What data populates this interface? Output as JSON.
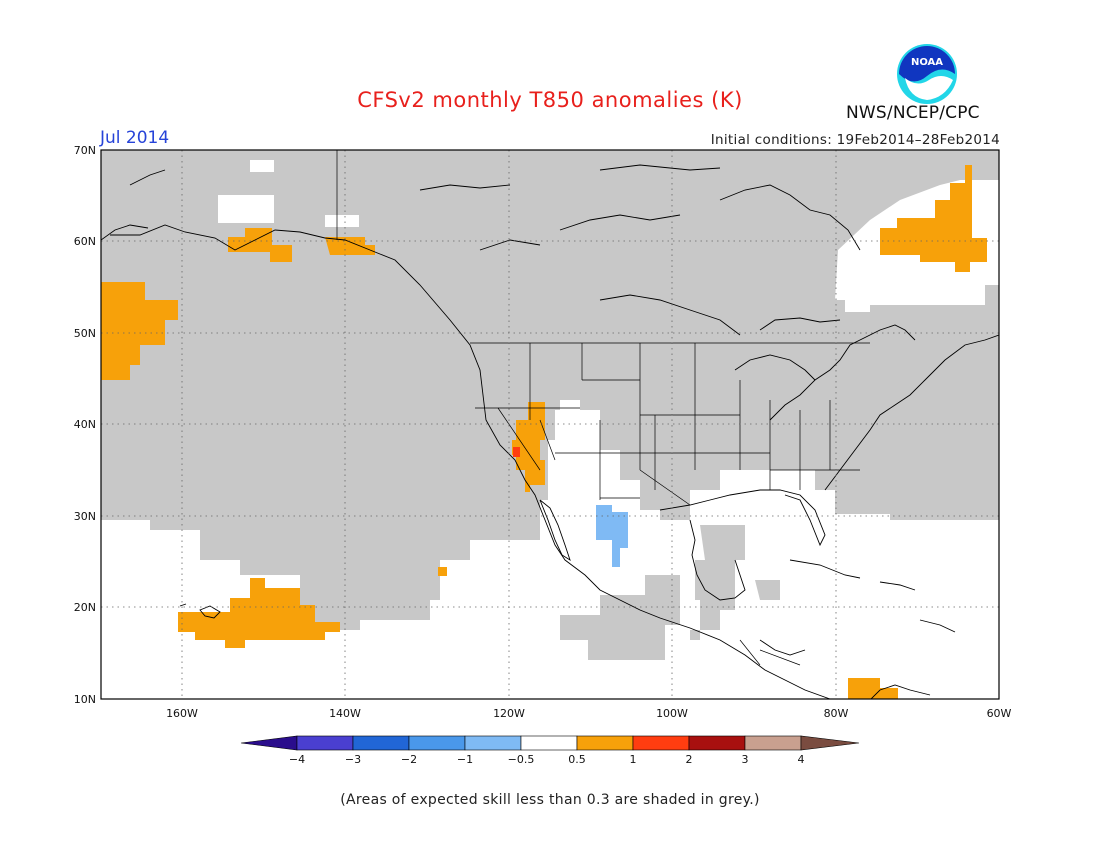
{
  "header": {
    "title": "CFSv2 monthly T850 anomalies (K)",
    "month": "Jul 2014",
    "initial_conditions": "Initial conditions: 19Feb2014–28Feb2014",
    "org": "NWS/NCEP/CPC",
    "logo_text": "NOAA"
  },
  "map": {
    "lat_labels": [
      "70N",
      "60N",
      "50N",
      "40N",
      "30N",
      "20N",
      "10N"
    ],
    "lon_labels": [
      "160W",
      "140W",
      "120W",
      "100W",
      "80W",
      "60W"
    ],
    "lon_range": [
      -170,
      -60
    ],
    "lat_range": [
      10,
      70
    ],
    "grid": "dotted"
  },
  "colorbar": {
    "ticks": [
      "−4",
      "−3",
      "−2",
      "−1",
      "−0.5",
      "0.5",
      "1",
      "2",
      "3",
      "4"
    ],
    "colors": [
      "#2a0d8c",
      "#4a3fd0",
      "#2166d6",
      "#4a98ea",
      "#7fbaf4",
      "#ffffff",
      "#f7a10a",
      "#ff3d10",
      "#a8100f",
      "#c9a08f",
      "#7a4c40"
    ]
  },
  "legend_note": "(Areas of expected skill less than 0.3 are shaded in grey.)",
  "colors": {
    "skill_grey": "#c8c8c8",
    "anom_orange": "#f7a10a",
    "anom_red": "#ff3d10",
    "anom_blue": "#7fbaf4"
  }
}
